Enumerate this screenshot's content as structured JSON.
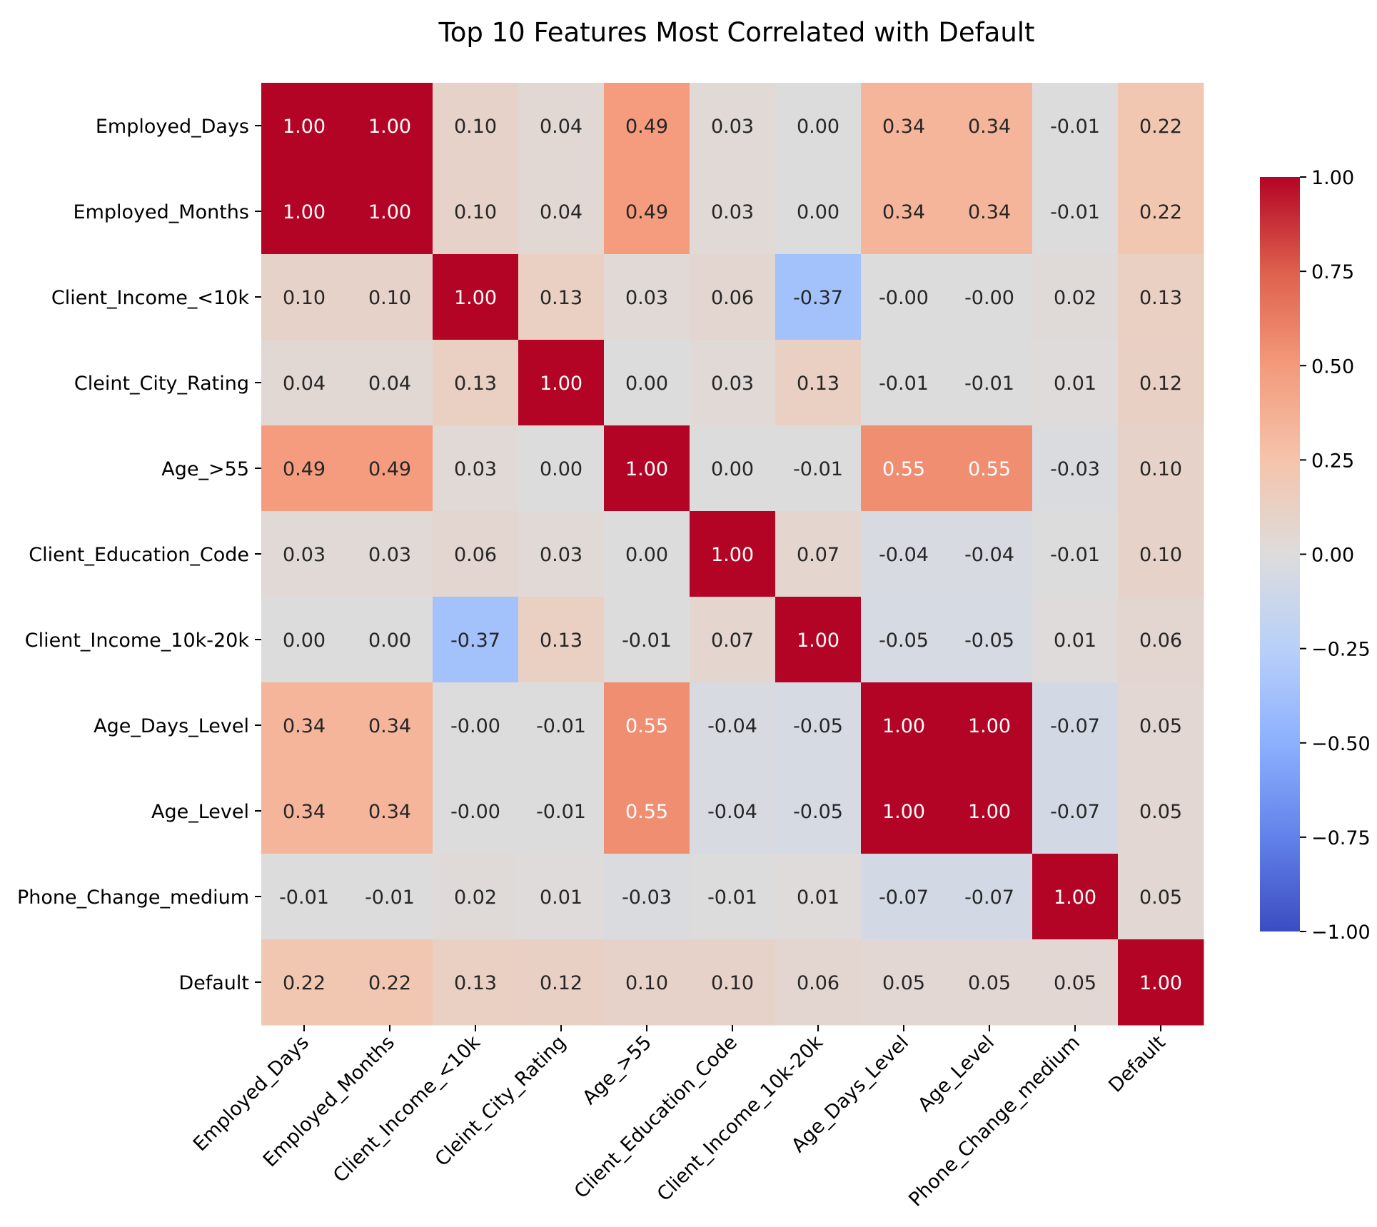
{
  "chart_data": {
    "type": "heatmap",
    "title": "Top 10 Features Most Correlated with Default",
    "labels": [
      "Employed_Days",
      "Employed_Months",
      "Client_Income_<10k",
      "Cleint_City_Rating",
      "Age_>55",
      "Client_Education_Code",
      "Client_Income_10k-20k",
      "Age_Days_Level",
      "Age_Level",
      "Phone_Change_medium",
      "Default"
    ],
    "values": [
      [
        1.0,
        1.0,
        0.1,
        0.04,
        0.49,
        0.03,
        0.0,
        0.34,
        0.34,
        -0.01,
        0.22
      ],
      [
        1.0,
        1.0,
        0.1,
        0.04,
        0.49,
        0.03,
        0.0,
        0.34,
        0.34,
        -0.01,
        0.22
      ],
      [
        0.1,
        0.1,
        1.0,
        0.13,
        0.03,
        0.06,
        -0.37,
        -0.0,
        -0.0,
        0.02,
        0.13
      ],
      [
        0.04,
        0.04,
        0.13,
        1.0,
        0.0,
        0.03,
        0.13,
        -0.01,
        -0.01,
        0.01,
        0.12
      ],
      [
        0.49,
        0.49,
        0.03,
        0.0,
        1.0,
        0.0,
        -0.01,
        0.55,
        0.55,
        -0.03,
        0.1
      ],
      [
        0.03,
        0.03,
        0.06,
        0.03,
        0.0,
        1.0,
        0.07,
        -0.04,
        -0.04,
        -0.01,
        0.1
      ],
      [
        0.0,
        0.0,
        -0.37,
        0.13,
        -0.01,
        0.07,
        1.0,
        -0.05,
        -0.05,
        0.01,
        0.06
      ],
      [
        0.34,
        0.34,
        -0.0,
        -0.01,
        0.55,
        -0.04,
        -0.05,
        1.0,
        1.0,
        -0.07,
        0.05
      ],
      [
        0.34,
        0.34,
        -0.0,
        -0.01,
        0.55,
        -0.04,
        -0.05,
        1.0,
        1.0,
        -0.07,
        0.05
      ],
      [
        -0.01,
        -0.01,
        0.02,
        0.01,
        -0.03,
        -0.01,
        0.01,
        -0.07,
        -0.07,
        1.0,
        0.05
      ],
      [
        0.22,
        0.22,
        0.13,
        0.12,
        0.1,
        0.1,
        0.06,
        0.05,
        0.05,
        0.05,
        1.0
      ]
    ],
    "value_format": "2 decimals",
    "colormap": "coolwarm",
    "colorbar": {
      "range": [
        -1.0,
        1.0
      ],
      "ticks": [
        "1.00",
        "0.75",
        "0.50",
        "0.25",
        "0.00",
        "−0.25",
        "−0.50",
        "−0.75",
        "−1.00"
      ]
    }
  },
  "colors": {
    "colormap_stops": [
      "#3b4cc0",
      "#6282ea",
      "#8db0fe",
      "#b8d0f9",
      "#dddcdc",
      "#f5c4ac",
      "#f49a7b",
      "#de604d",
      "#b40426"
    ]
  }
}
